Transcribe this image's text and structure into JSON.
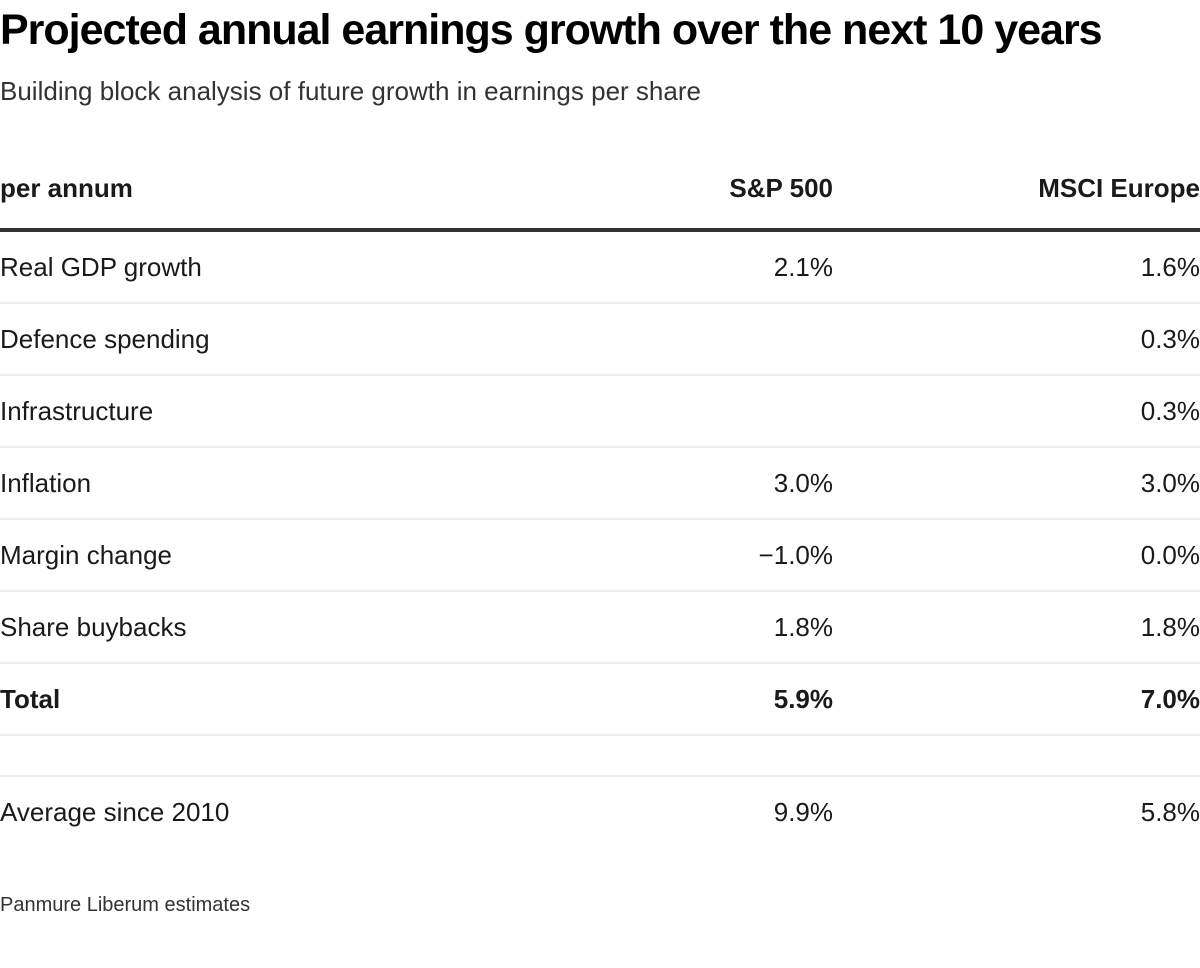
{
  "chart_data": {
    "type": "table",
    "title": "Projected annual earnings growth over the next 10 years",
    "subtitle": "Building block analysis of future growth in earnings per share",
    "columns": [
      "per annum",
      "S&P 500",
      "MSCI Europe"
    ],
    "rows": [
      {
        "label": "Real GDP growth",
        "sp500": "2.1%",
        "msci_europe": "1.6%"
      },
      {
        "label": "Defence spending",
        "sp500": "",
        "msci_europe": "0.3%"
      },
      {
        "label": "Infrastructure",
        "sp500": "",
        "msci_europe": "0.3%"
      },
      {
        "label": "Inflation",
        "sp500": "3.0%",
        "msci_europe": "3.0%"
      },
      {
        "label": "Margin change",
        "sp500": "−1.0%",
        "msci_europe": "0.0%"
      },
      {
        "label": "Share buybacks",
        "sp500": "1.8%",
        "msci_europe": "1.8%"
      },
      {
        "label": "Total",
        "sp500": "5.9%",
        "msci_europe": "7.0%",
        "bold": true
      },
      {
        "label": "",
        "sp500": "",
        "msci_europe": "",
        "spacer": true
      },
      {
        "label": "Average since 2010",
        "sp500": "9.9%",
        "msci_europe": "5.8%",
        "last": true
      }
    ],
    "source": "Panmure Liberum estimates"
  },
  "colors": {
    "background": "#ffffff",
    "title_text": "#000000",
    "subtitle_text": "#333333",
    "body_text": "#1a1a1a",
    "header_rule": "#333333",
    "row_divider": "#ededed"
  }
}
